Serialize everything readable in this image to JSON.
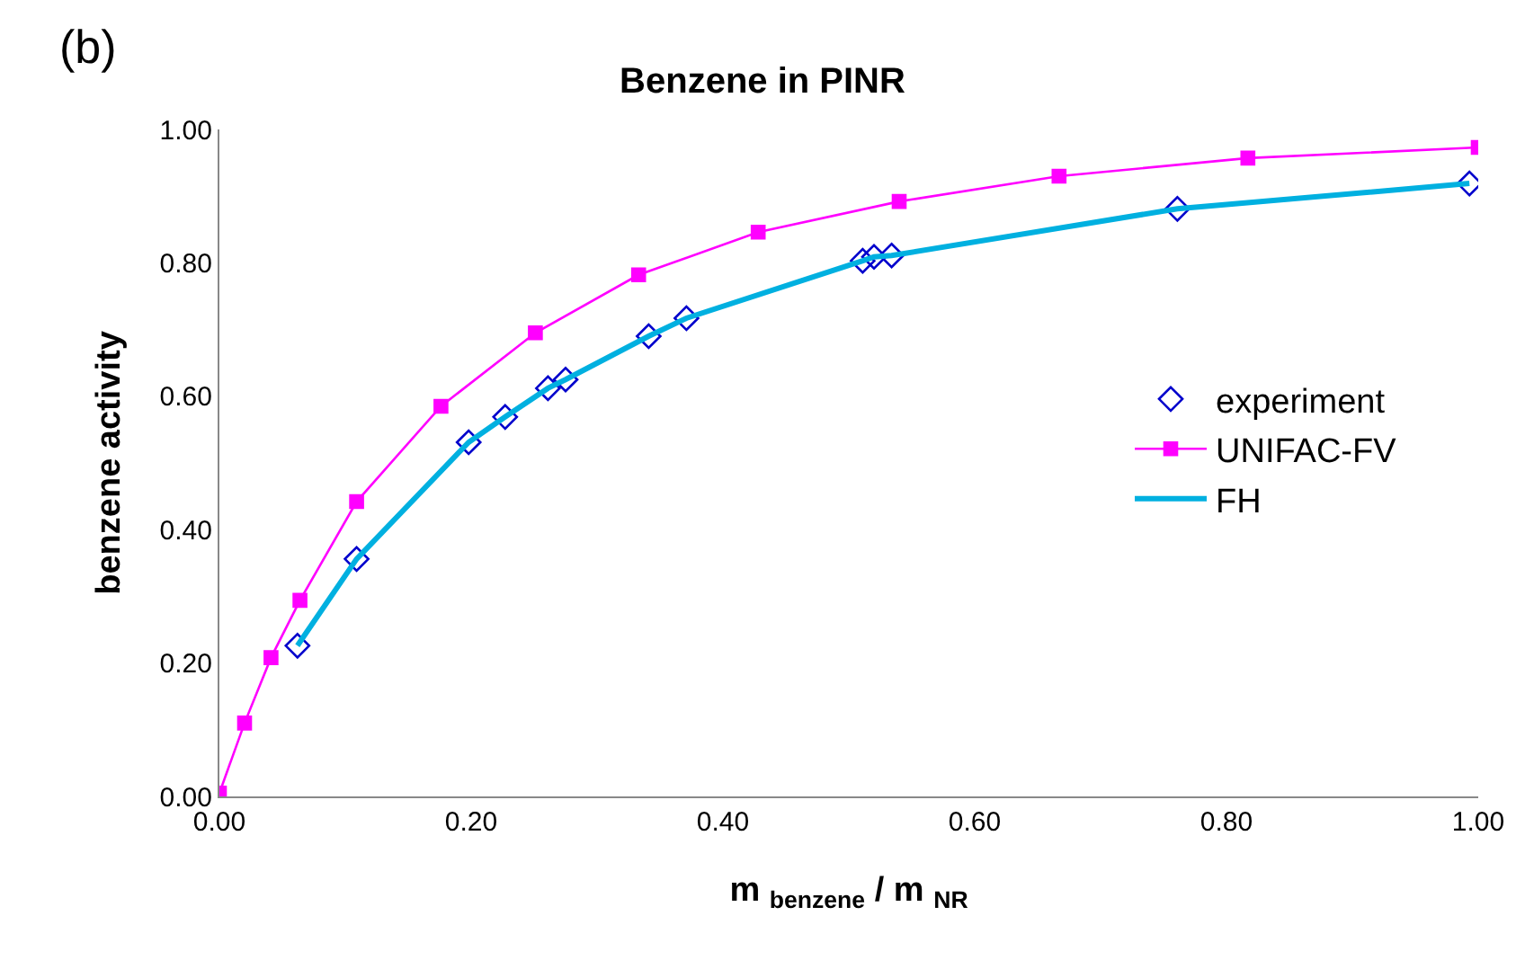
{
  "chart_data": {
    "type": "line",
    "title": "Benzene in PINR",
    "xlabel": "m $_{benzene}$ / m $_{NR}$",
    "ylabel": "benzene activity",
    "annotations": [
      "(b)"
    ],
    "xlim": [
      0,
      1
    ],
    "xticks": [
      {
        "value": 0,
        "label": "0.00"
      },
      {
        "value": 0.2,
        "label": "0.20"
      },
      {
        "value": 0.4,
        "label": "0.40"
      },
      {
        "value": 0.6,
        "label": "0.60"
      },
      {
        "value": 0.8,
        "label": "0.80"
      },
      {
        "value": 1,
        "label": "1.00"
      }
    ],
    "ylim": [
      0,
      1
    ],
    "yticks": [
      {
        "value": 0,
        "label": "0.00"
      },
      {
        "value": 0.2,
        "label": "0.20"
      },
      {
        "value": 0.4,
        "label": "0.40"
      },
      {
        "value": 0.6,
        "label": "0.60"
      },
      {
        "value": 0.8,
        "label": "0.80"
      },
      {
        "value": 1,
        "label": "1.00"
      }
    ],
    "grid": false,
    "legend": "right",
    "series": [
      {
        "name": "experiment",
        "type": "scatter",
        "marker": "diamond",
        "color": "#0000cc",
        "x": [
          0.062,
          0.109,
          0.198,
          0.227,
          0.261,
          0.275,
          0.341,
          0.371,
          0.511,
          0.52,
          0.534,
          0.761,
          0.993
        ],
        "values": [
          0.226,
          0.356,
          0.531,
          0.569,
          0.612,
          0.625,
          0.69,
          0.717,
          0.803,
          0.809,
          0.811,
          0.881,
          0.919
        ]
      },
      {
        "name": "UNIFAC-FV",
        "marker": "square",
        "color": "#ff00ff",
        "x": [
          0,
          0.02,
          0.041,
          0.064,
          0.109,
          0.176,
          0.251,
          0.333,
          0.428,
          0.54,
          0.667,
          0.817,
          1.0
        ],
        "values": [
          0.005,
          0.11,
          0.208,
          0.294,
          0.442,
          0.585,
          0.695,
          0.782,
          0.846,
          0.892,
          0.93,
          0.957,
          0.973
        ]
      },
      {
        "name": "FH",
        "marker": "none",
        "color": "#00b0e0",
        "x": [
          0.062,
          0.109,
          0.198,
          0.227,
          0.261,
          0.275,
          0.341,
          0.371,
          0.511,
          0.52,
          0.534,
          0.761,
          0.993
        ],
        "values": [
          0.226,
          0.356,
          0.531,
          0.569,
          0.612,
          0.625,
          0.69,
          0.717,
          0.803,
          0.809,
          0.811,
          0.881,
          0.919
        ]
      }
    ]
  }
}
